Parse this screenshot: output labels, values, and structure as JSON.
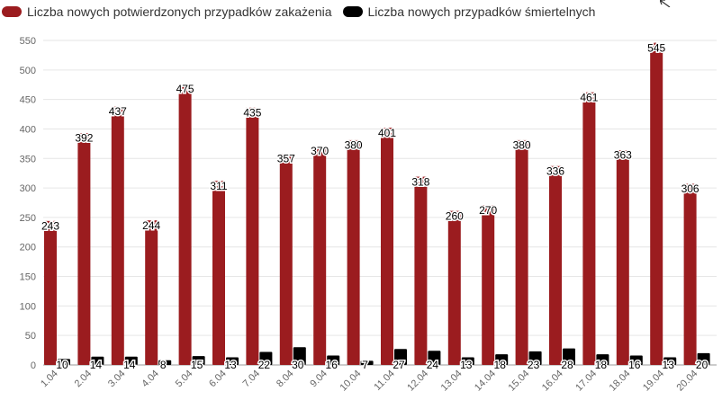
{
  "legend": {
    "cases_label": "Liczba nowych potwierdzonych przypadków zakażenia",
    "deaths_label": "Liczba nowych przypadków śmiertelnych"
  },
  "colors": {
    "cases": "#9b1c1f",
    "deaths": "#000000",
    "grid": "#e6e6e6",
    "axis": "#999999"
  },
  "chart_data": {
    "type": "bar",
    "title": "",
    "xlabel": "",
    "ylabel": "",
    "ylim": [
      0,
      550
    ],
    "yticks": [
      0,
      50,
      100,
      150,
      200,
      250,
      300,
      350,
      400,
      450,
      500,
      550
    ],
    "grid": true,
    "legend_position": "top-left",
    "categories": [
      "1.04",
      "2.04",
      "3.04",
      "4.04",
      "5.04",
      "6.04",
      "7.04",
      "8.04",
      "9.04",
      "10.04",
      "11.04",
      "12.04",
      "13.04",
      "14.04",
      "15.04",
      "16.04",
      "17.04",
      "18.04",
      "19.04",
      "20.04"
    ],
    "series": [
      {
        "name": "Liczba nowych potwierdzonych przypadków zakażenia",
        "values": [
          243,
          392,
          437,
          244,
          475,
          311,
          435,
          357,
          370,
          380,
          401,
          318,
          260,
          270,
          380,
          336,
          461,
          363,
          545,
          306
        ]
      },
      {
        "name": "Liczba nowych przypadków śmiertelnych",
        "values": [
          10,
          14,
          14,
          8,
          15,
          13,
          22,
          30,
          16,
          7,
          27,
          24,
          13,
          18,
          23,
          28,
          18,
          16,
          13,
          20
        ]
      }
    ]
  }
}
